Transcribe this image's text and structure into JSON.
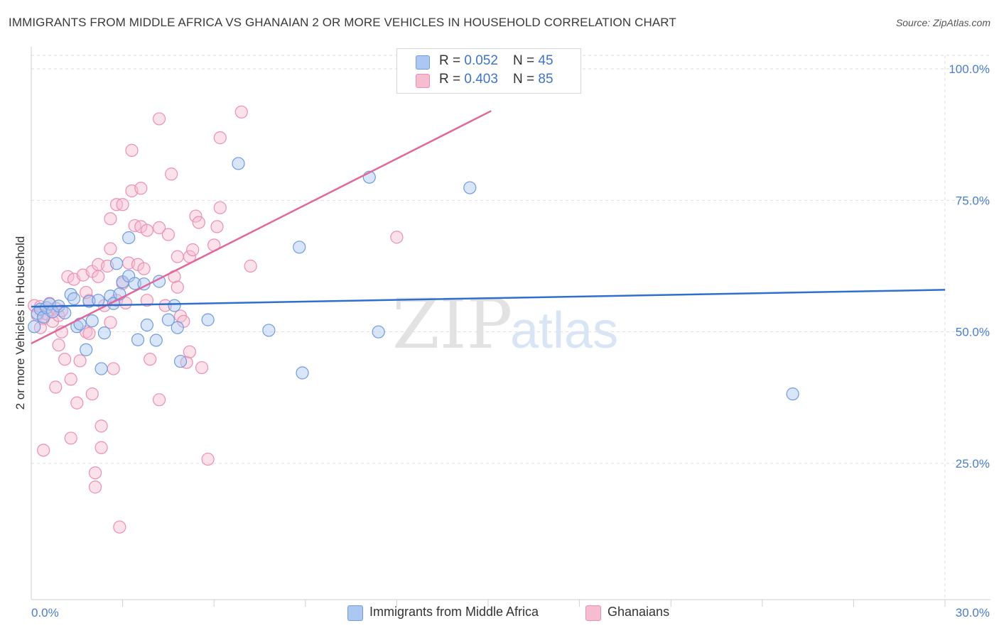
{
  "title": "IMMIGRANTS FROM MIDDLE AFRICA VS GHANAIAN 2 OR MORE VEHICLES IN HOUSEHOLD CORRELATION CHART",
  "source": "Source: ZipAtlas.com",
  "watermark": {
    "zip": "ZIP",
    "atlas": "atlas"
  },
  "legend": {
    "rows": [
      {
        "r_label": "R = ",
        "r_value": "0.052",
        "n_label": "N = ",
        "n_value": "45"
      },
      {
        "r_label": "R = ",
        "r_value": "0.403",
        "n_label": "N = ",
        "n_value": "85"
      }
    ]
  },
  "colors": {
    "blue_fill": "#aac8f2",
    "blue_stroke": "#6f9bdf",
    "blue_line": "#2f6fce",
    "pink_fill": "#f6bcd0",
    "pink_stroke": "#ec8fb0",
    "pink_line": "#e0689a",
    "grid": "#dedede",
    "axis_text": "#4a7cd0"
  },
  "chart_data": {
    "type": "scatter",
    "title": "IMMIGRANTS FROM MIDDLE AFRICA VS GHANAIAN 2 OR MORE VEHICLES IN HOUSEHOLD CORRELATION CHART",
    "xlabel": "",
    "ylabel": "2 or more Vehicles in Household",
    "xlim": [
      0,
      30
    ],
    "ylim": [
      0,
      105
    ],
    "x_tick_labels": [
      "0.0%",
      "30.0%"
    ],
    "y_ticks": [
      25,
      50,
      75,
      100
    ],
    "y_tick_labels": [
      "25.0%",
      "50.0%",
      "75.0%",
      "100.0%"
    ],
    "x_minor_ticks": [
      3,
      6,
      9,
      12,
      15,
      18,
      21,
      24,
      27,
      30
    ],
    "series": [
      {
        "name": "Immigrants from Middle Africa",
        "color": "blue",
        "R": 0.052,
        "N": 45,
        "trend": {
          "x": [
            0,
            30
          ],
          "y": [
            54.8,
            58.0
          ]
        },
        "points": [
          [
            0.2,
            53.5
          ],
          [
            0.3,
            54.3
          ],
          [
            0.4,
            52.8
          ],
          [
            0.5,
            54.6
          ],
          [
            0.6,
            55.3
          ],
          [
            0.7,
            53.8
          ],
          [
            0.9,
            54.9
          ],
          [
            1.1,
            53.6
          ],
          [
            1.3,
            57.1
          ],
          [
            1.4,
            56.3
          ],
          [
            1.5,
            51.0
          ],
          [
            1.6,
            51.5
          ],
          [
            1.8,
            46.6
          ],
          [
            1.9,
            55.8
          ],
          [
            2.0,
            52.1
          ],
          [
            2.2,
            56.0
          ],
          [
            2.3,
            43.0
          ],
          [
            2.4,
            49.8
          ],
          [
            2.6,
            56.8
          ],
          [
            2.7,
            55.4
          ],
          [
            2.8,
            63.0
          ],
          [
            2.9,
            57.2
          ],
          [
            3.0,
            59.5
          ],
          [
            3.2,
            60.6
          ],
          [
            3.2,
            67.9
          ],
          [
            3.4,
            59.2
          ],
          [
            3.5,
            48.5
          ],
          [
            3.7,
            59.1
          ],
          [
            3.8,
            51.3
          ],
          [
            4.1,
            48.4
          ],
          [
            4.2,
            59.6
          ],
          [
            4.5,
            52.3
          ],
          [
            4.7,
            55.0
          ],
          [
            4.8,
            50.8
          ],
          [
            4.9,
            44.4
          ],
          [
            5.8,
            52.3
          ],
          [
            6.8,
            82.0
          ],
          [
            7.8,
            50.3
          ],
          [
            8.8,
            66.1
          ],
          [
            8.9,
            42.2
          ],
          [
            11.1,
            79.4
          ],
          [
            11.4,
            50.0
          ],
          [
            14.4,
            77.4
          ],
          [
            25.0,
            38.2
          ],
          [
            0.1,
            51.0
          ]
        ]
      },
      {
        "name": "Ghanaians",
        "color": "pink",
        "R": 0.403,
        "N": 85,
        "trend": {
          "x": [
            0,
            15.1
          ],
          "y": [
            47.8,
            92.0
          ]
        },
        "points": [
          [
            0.1,
            55.0
          ],
          [
            0.2,
            53.2
          ],
          [
            0.3,
            54.8
          ],
          [
            0.4,
            52.5
          ],
          [
            0.5,
            53.4
          ],
          [
            0.6,
            54.1
          ],
          [
            0.7,
            52.0
          ],
          [
            0.8,
            54.5
          ],
          [
            0.9,
            53.1
          ],
          [
            0.4,
            27.5
          ],
          [
            0.8,
            39.5
          ],
          [
            0.9,
            47.5
          ],
          [
            1.0,
            50.0
          ],
          [
            1.1,
            44.8
          ],
          [
            1.2,
            60.5
          ],
          [
            1.3,
            41.0
          ],
          [
            1.3,
            29.8
          ],
          [
            1.4,
            60.0
          ],
          [
            1.5,
            36.5
          ],
          [
            1.6,
            44.5
          ],
          [
            1.7,
            60.8
          ],
          [
            1.8,
            50.0
          ],
          [
            1.9,
            49.7
          ],
          [
            1.9,
            56.0
          ],
          [
            2.0,
            38.2
          ],
          [
            2.0,
            61.5
          ],
          [
            2.1,
            23.2
          ],
          [
            2.1,
            20.5
          ],
          [
            2.2,
            60.5
          ],
          [
            2.2,
            62.8
          ],
          [
            2.3,
            32.1
          ],
          [
            2.3,
            28.0
          ],
          [
            2.4,
            55.0
          ],
          [
            2.5,
            62.5
          ],
          [
            2.6,
            65.8
          ],
          [
            2.6,
            71.5
          ],
          [
            2.7,
            43.0
          ],
          [
            2.8,
            56.0
          ],
          [
            2.8,
            74.2
          ],
          [
            2.9,
            12.9
          ],
          [
            3.0,
            74.2
          ],
          [
            3.0,
            59.2
          ],
          [
            3.1,
            55.5
          ],
          [
            3.2,
            63.1
          ],
          [
            3.3,
            76.8
          ],
          [
            3.3,
            84.5
          ],
          [
            3.4,
            70.2
          ],
          [
            3.5,
            62.8
          ],
          [
            3.6,
            70.0
          ],
          [
            3.6,
            77.3
          ],
          [
            3.7,
            62.0
          ],
          [
            3.8,
            56.0
          ],
          [
            3.8,
            69.3
          ],
          [
            3.9,
            44.8
          ],
          [
            4.2,
            37.1
          ],
          [
            4.2,
            90.5
          ],
          [
            4.2,
            69.8
          ],
          [
            4.4,
            55.0
          ],
          [
            4.5,
            68.5
          ],
          [
            4.6,
            80.0
          ],
          [
            4.7,
            60.5
          ],
          [
            4.8,
            64.3
          ],
          [
            4.9,
            53.0
          ],
          [
            5.0,
            52.0
          ],
          [
            5.1,
            44.2
          ],
          [
            5.2,
            64.3
          ],
          [
            5.3,
            65.6
          ],
          [
            5.4,
            72.0
          ],
          [
            5.5,
            70.8
          ],
          [
            5.6,
            43.2
          ],
          [
            5.8,
            25.8
          ],
          [
            6.0,
            66.5
          ],
          [
            6.1,
            70.0
          ],
          [
            6.2,
            73.6
          ],
          [
            6.2,
            86.9
          ],
          [
            6.9,
            91.8
          ],
          [
            7.2,
            62.5
          ],
          [
            12.0,
            68.0
          ],
          [
            5.2,
            46.2
          ],
          [
            4.8,
            58.5
          ],
          [
            0.6,
            55.4
          ],
          [
            1.0,
            54.0
          ],
          [
            1.8,
            57.5
          ],
          [
            2.6,
            51.8
          ],
          [
            0.3,
            50.8
          ]
        ]
      }
    ]
  },
  "bottom_legend": [
    {
      "label": "Immigrants from Middle Africa"
    },
    {
      "label": "Ghanaians"
    }
  ]
}
